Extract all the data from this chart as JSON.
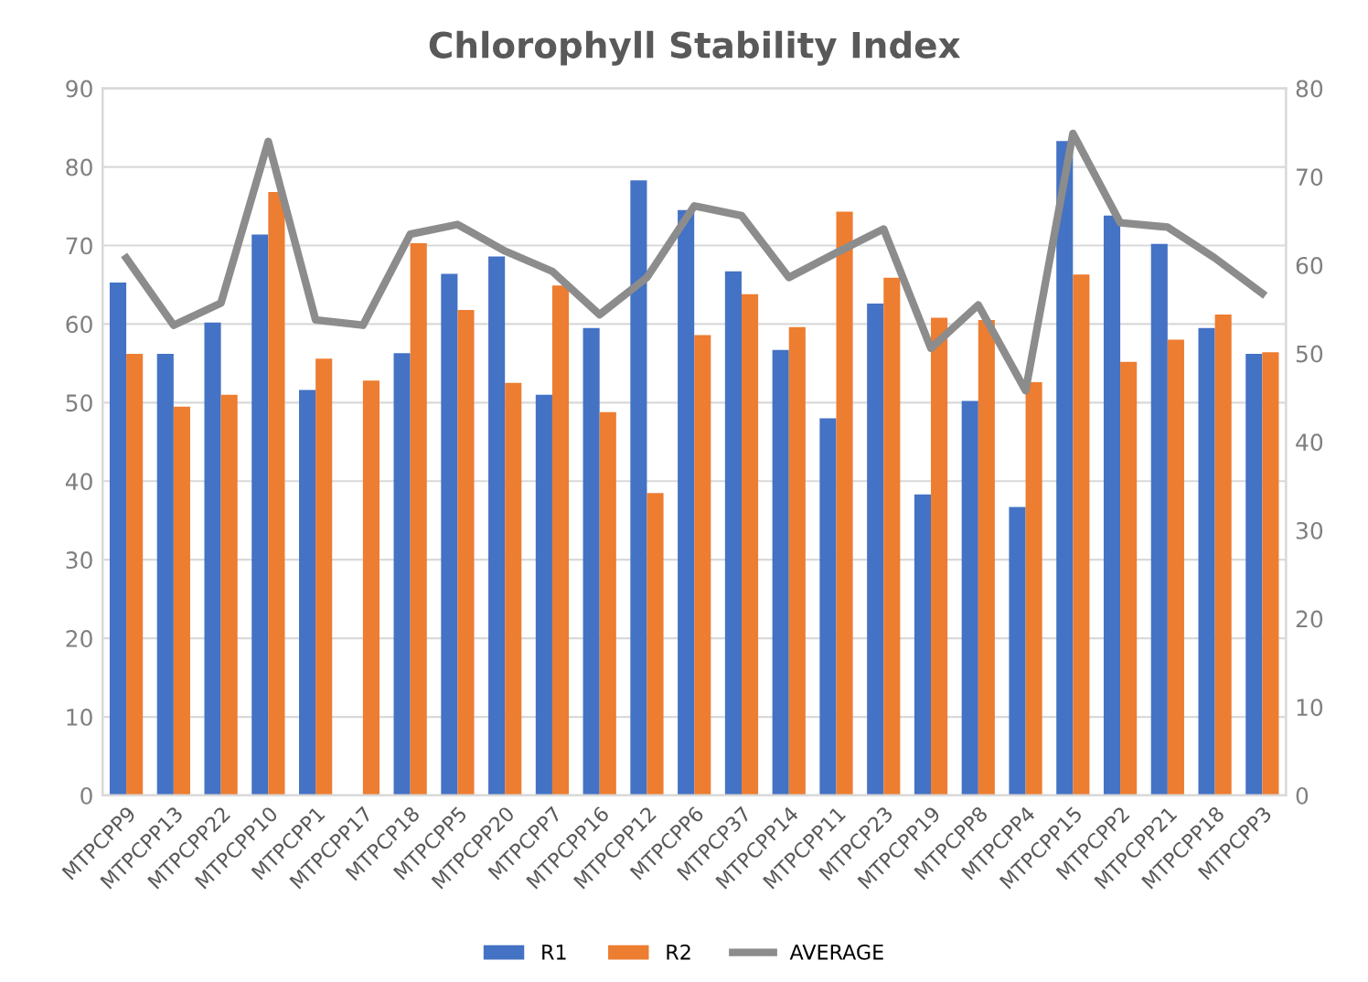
{
  "chart_data": {
    "type": "bar",
    "title": "Chlorophyll Stability Index",
    "categories": [
      "MTPCPP9",
      "MTPCPP13",
      "MTPCPP22",
      "MTPCPP10",
      "MTPCPP1",
      "MTPCPP17",
      "MTPCP18",
      "MTPCPP5",
      "MTPCPP20",
      "MTPCPP7",
      "MTPCPP16",
      "MTPCPP12",
      "MTPCPP6",
      "MTPCP37",
      "MTPCPP14",
      "MTPCPP11",
      "MTPCP23",
      "MTPCPP19",
      "MTPCPP8",
      "MTPCPP4",
      "MTPCPP15",
      "MTPCPP2",
      "MTPCPP21",
      "MTPCPP18",
      "MTPCPP3"
    ],
    "series": [
      {
        "name": "R1",
        "color": "#4472c4",
        "values": [
          65.3,
          56.2,
          60.2,
          71.4,
          51.6,
          null,
          56.3,
          66.4,
          68.6,
          51,
          59.5,
          78.3,
          74.5,
          66.7,
          56.7,
          48,
          62.6,
          38.3,
          50.2,
          36.7,
          83.3,
          73.8,
          70.2,
          59.5,
          56.2
        ]
      },
      {
        "name": "R2",
        "color": "#ed7d31",
        "values": [
          56.2,
          49.5,
          51,
          76.8,
          55.6,
          52.8,
          70.3,
          61.8,
          52.5,
          64.9,
          48.8,
          38.5,
          58.6,
          63.8,
          59.6,
          74.3,
          65.9,
          60.8,
          60.5,
          52.6,
          66.3,
          55.2,
          58,
          61.2,
          56.4
        ]
      },
      {
        "name": "AVERAGE",
        "type": "line",
        "axis": "y2",
        "color": "#8c8c8c",
        "values": [
          60.8,
          53.2,
          55.7,
          74,
          53.8,
          53.2,
          63.5,
          64.6,
          61.6,
          59.3,
          54.4,
          58.6,
          66.7,
          65.6,
          58.6,
          61.4,
          64.1,
          50.6,
          55.5,
          45.8,
          74.9,
          64.8,
          64.3,
          60.8,
          56.8
        ]
      }
    ],
    "ylim": [
      0,
      90
    ],
    "yticks": [
      0,
      10,
      20,
      30,
      40,
      50,
      60,
      70,
      80,
      90
    ],
    "y2lim": [
      0,
      80
    ],
    "y2ticks": [
      0,
      10,
      20,
      30,
      40,
      50,
      60,
      70,
      80
    ],
    "grid": "y",
    "legend": "bottom",
    "marker": "none",
    "line_style": "solid"
  }
}
